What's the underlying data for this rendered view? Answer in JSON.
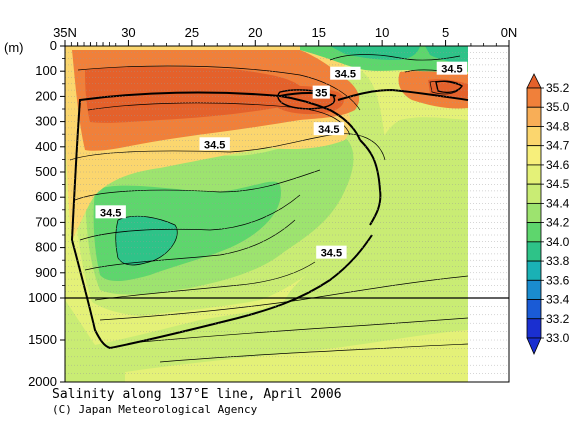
{
  "chart_data": {
    "type": "contour",
    "title": "Salinity along 137°E line, April 2006",
    "credit": "(C) Japan Meteorological Agency",
    "ylabel": "(m)",
    "x_ticks": [
      {
        "value": 35,
        "label": "35N"
      },
      {
        "value": 30,
        "label": "30"
      },
      {
        "value": 25,
        "label": "25"
      },
      {
        "value": 20,
        "label": "20"
      },
      {
        "value": 15,
        "label": "15"
      },
      {
        "value": 10,
        "label": "10"
      },
      {
        "value": 5,
        "label": "5"
      },
      {
        "value": 0,
        "label": "0N"
      }
    ],
    "xlim": [
      35,
      0
    ],
    "y_ticks_upper": [
      0,
      100,
      200,
      300,
      400,
      500,
      600,
      700,
      800,
      900,
      1000
    ],
    "y_ticks_lower": [
      1000,
      1500,
      2000
    ],
    "ylim": [
      0,
      2000
    ],
    "y_break": 1000,
    "colorbar": {
      "labels": [
        "35.2",
        "35.0",
        "34.8",
        "34.7",
        "34.6",
        "34.5",
        "34.4",
        "34.2",
        "34.0",
        "33.8",
        "33.6",
        "33.4",
        "33.2",
        "33.0"
      ],
      "colors": [
        "#e4612b",
        "#f0803a",
        "#f8ae57",
        "#fbd66e",
        "#f7ef7b",
        "#e4f178",
        "#c9ec74",
        "#9de36f",
        "#5ed66d",
        "#2ec388",
        "#1ab1b5",
        "#1a8ccf",
        "#1a5bd6",
        "#1a2fd0"
      ]
    },
    "contour_labels": [
      {
        "text": "35",
        "lat": 14.8,
        "depth": 185
      },
      {
        "text": "34.5",
        "lat": 12.9,
        "depth": 110
      },
      {
        "text": "34.5",
        "lat": 4.5,
        "depth": 90
      },
      {
        "text": "34.5",
        "lat": 14.2,
        "depth": 330
      },
      {
        "text": "34.5",
        "lat": 23.2,
        "depth": 390
      },
      {
        "text": "34.5",
        "lat": 31.4,
        "depth": 660
      },
      {
        "text": "34.5",
        "lat": 14.0,
        "depth": 820
      }
    ]
  }
}
